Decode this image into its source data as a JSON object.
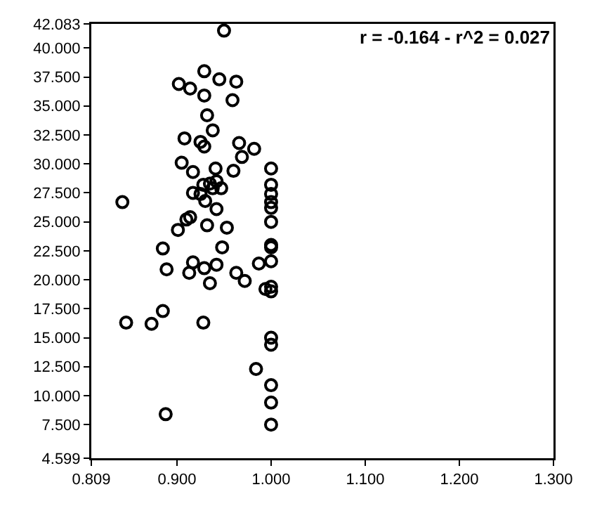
{
  "chart_data": {
    "type": "scatter",
    "annotations": [
      "r = -0.164 - r^2 = 0.027"
    ],
    "x": [
      0.95,
      0.929,
      0.945,
      0.963,
      0.902,
      0.914,
      0.929,
      0.959,
      0.932,
      0.938,
      0.908,
      0.925,
      0.929,
      0.966,
      0.982,
      0.969,
      0.905,
      0.917,
      0.941,
      0.96,
      0.928,
      0.935,
      0.942,
      0.947,
      0.917,
      0.925,
      0.938,
      0.93,
      0.842,
      0.942,
      0.91,
      0.914,
      0.901,
      0.932,
      0.953,
      0.885,
      0.948,
      0.889,
      0.917,
      0.913,
      0.929,
      0.942,
      0.935,
      0.963,
      0.972,
      0.987,
      0.994,
      0.885,
      0.846,
      0.873,
      0.928,
      0.984,
      0.888,
      1.0,
      1.0,
      1.0,
      1.0,
      1.0,
      1.0,
      1.0,
      1.0,
      1.0,
      1.0,
      1.0,
      1.0,
      1.0,
      1.0,
      1.0,
      1.0
    ],
    "values": [
      41.5,
      38.0,
      37.3,
      37.1,
      36.9,
      36.5,
      35.9,
      35.5,
      34.2,
      32.9,
      32.2,
      31.9,
      31.5,
      31.8,
      31.3,
      30.6,
      30.1,
      29.3,
      29.6,
      29.4,
      28.2,
      28.3,
      28.5,
      27.9,
      27.5,
      27.4,
      27.9,
      26.8,
      26.7,
      26.1,
      25.2,
      25.4,
      24.3,
      24.7,
      24.5,
      22.7,
      22.8,
      20.9,
      21.5,
      20.6,
      21.0,
      21.3,
      19.7,
      20.6,
      19.9,
      21.4,
      19.2,
      17.3,
      16.3,
      16.2,
      16.3,
      12.3,
      8.4,
      29.6,
      28.2,
      27.4,
      26.7,
      26.2,
      25.0,
      23.0,
      22.8,
      21.6,
      19.4,
      19.0,
      15.0,
      14.4,
      10.9,
      9.4,
      7.5
    ],
    "color": "#000000",
    "marker": "circle",
    "grid": false,
    "legend": false,
    "xlim": [
      0.809,
      1.3
    ],
    "xticks": [
      {
        "value": 0.809,
        "label": "0.809"
      },
      {
        "value": 0.9,
        "label": "0.900"
      },
      {
        "value": 1.0,
        "label": "1.000"
      },
      {
        "value": 1.1,
        "label": "1.100"
      },
      {
        "value": 1.2,
        "label": "1.200"
      },
      {
        "value": 1.3,
        "label": "1.300"
      }
    ],
    "ylim": [
      4.599,
      42.083
    ],
    "yticks": [
      {
        "value": 4.599,
        "label": "4.599"
      },
      {
        "value": 7.5,
        "label": "7.500"
      },
      {
        "value": 10,
        "label": "10.000"
      },
      {
        "value": 12.5,
        "label": "12.500"
      },
      {
        "value": 15,
        "label": "15.000"
      },
      {
        "value": 17.5,
        "label": "17.500"
      },
      {
        "value": 20,
        "label": "20.000"
      },
      {
        "value": 22.5,
        "label": "22.500"
      },
      {
        "value": 25,
        "label": "25.000"
      },
      {
        "value": 27.5,
        "label": "27.500"
      },
      {
        "value": 30,
        "label": "30.000"
      },
      {
        "value": 32.5,
        "label": "32.500"
      },
      {
        "value": 35,
        "label": "35.000"
      },
      {
        "value": 37.5,
        "label": "37.500"
      },
      {
        "value": 40,
        "label": "40.000"
      },
      {
        "value": 42.083,
        "label": "42.083"
      }
    ]
  }
}
